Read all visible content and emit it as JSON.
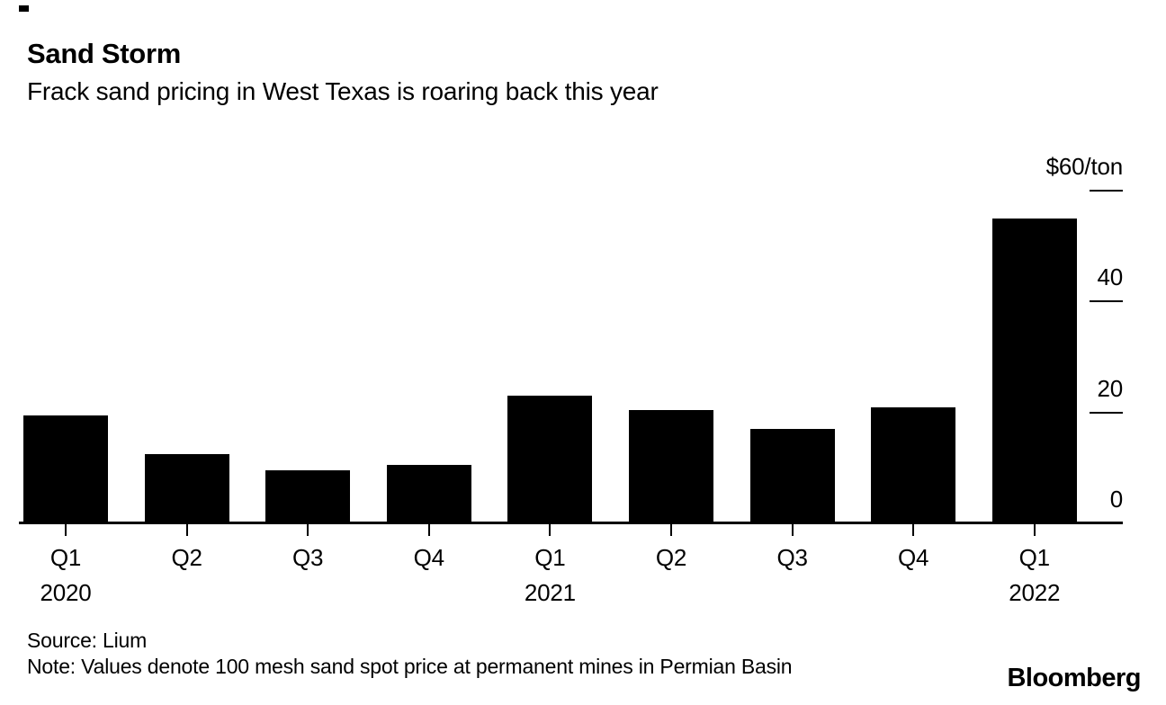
{
  "header": {
    "title": "Sand Storm",
    "subtitle": "Frack sand pricing in West Texas is roaring back this year"
  },
  "chart_data": {
    "type": "bar",
    "title": "Sand Storm",
    "subtitle": "Frack sand pricing in West Texas is roaring back this year",
    "categories": [
      "Q1",
      "Q2",
      "Q3",
      "Q4",
      "Q1",
      "Q2",
      "Q3",
      "Q4",
      "Q1"
    ],
    "x_year_labels": [
      {
        "index": 0,
        "label": "2020"
      },
      {
        "index": 4,
        "label": "2021"
      },
      {
        "index": 8,
        "label": "2022"
      }
    ],
    "values": [
      19.5,
      12.5,
      9.5,
      10.5,
      23,
      20.5,
      17,
      21,
      55
    ],
    "unit": "$/ton",
    "y_axis_top_label": "$60/ton",
    "y_ticks": [
      {
        "value": 60,
        "label": "$60/ton",
        "dash": true
      },
      {
        "value": 40,
        "label": "40",
        "dash": true
      },
      {
        "value": 20,
        "label": "20",
        "dash": true
      },
      {
        "value": 0,
        "label": "0",
        "dash": false
      }
    ],
    "ylim": [
      0,
      60
    ],
    "grid": false,
    "legend_position": "none",
    "bar_color": "#000000"
  },
  "footer": {
    "source": "Source: Lium",
    "note": "Note: Values denote 100 mesh sand spot price at permanent mines in Permian Basin",
    "brand": "Bloomberg"
  },
  "colors": {
    "bar": "#000000",
    "text": "#000000",
    "axis": "#000000",
    "background": "#ffffff"
  }
}
